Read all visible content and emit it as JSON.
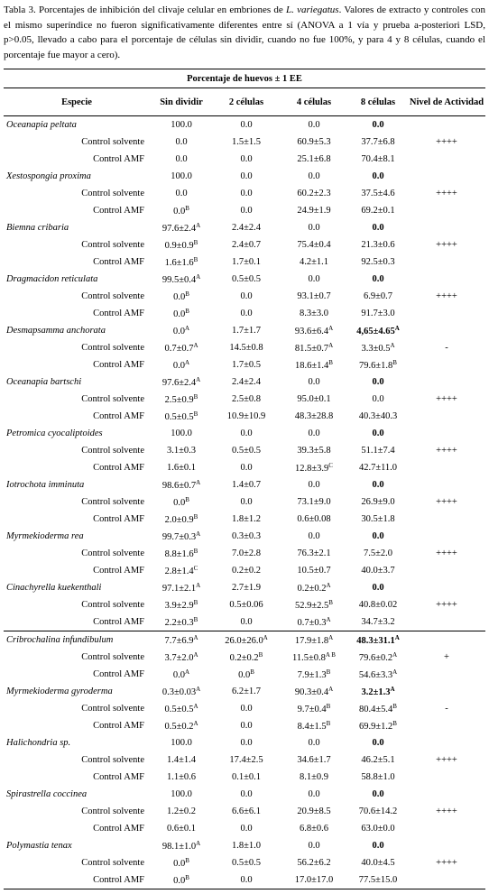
{
  "caption": {
    "before": "Tabla 3. Porcentajes de inhibición del clivaje celular en embriones de ",
    "species": "L. variegatus",
    "after": ". Valores de extracto y controles con el mismo superíndice no fueron significativamente diferentes entre sí (ANOVA a 1 vía y prueba a-posteriori LSD, p>0.05, llevado a cabo para el porcentaje de células sin dividir, cuando no fue 100%, y para 4 y 8 células, cuando el porcentaje fue mayor a cero)."
  },
  "table": {
    "group_header": "Porcentaje de huevos ± 1 EE",
    "columns": [
      "Especie",
      "Sin dividir",
      "2 células",
      "4 células",
      "8 células",
      "Nivel de Actividad"
    ],
    "control_labels": [
      "Control solvente",
      "Control AMF"
    ],
    "groups": [
      [
        {
          "name": "Oceanapia peltata",
          "values": [
            "100.0",
            "0.0",
            "0.0",
            "0.0"
          ],
          "solvente": [
            "0.0",
            "1.5±1.5",
            "60.9±5.3",
            "37.7±6.8"
          ],
          "amf": [
            "0.0",
            "0.0",
            "25.1±6.8",
            "70.4±8.1"
          ],
          "actividad": "++++"
        },
        {
          "name": "Xestospongia proxima",
          "values": [
            "100.0",
            "0.0",
            "0.0",
            "0.0"
          ],
          "solvente": [
            "0.0",
            "0.0",
            "60.2±2.3",
            "37.5±4.6"
          ],
          "amf": [
            {
              "t": "0.0",
              "s": "B"
            },
            "0.0",
            "24.9±1.9",
            "69.2±0.1"
          ],
          "actividad": "++++"
        },
        {
          "name": "Biemna cribaria",
          "values": [
            {
              "t": "97.6±2.4",
              "s": "A"
            },
            "2.4±2.4",
            "0.0",
            "0.0"
          ],
          "solvente": [
            {
              "t": "0.9±0.9",
              "s": "B"
            },
            "2.4±0.7",
            "75.4±0.4",
            "21.3±0.6"
          ],
          "amf": [
            {
              "t": "1.6±1.6",
              "s": "B"
            },
            "1.7±0.1",
            "4.2±1.1",
            "92.5±0.3"
          ],
          "actividad": "++++"
        },
        {
          "name": "Dragmacidon reticulata",
          "values": [
            {
              "t": "99.5±0.4",
              "s": "A"
            },
            "0.5±0.5",
            "0.0",
            "0.0"
          ],
          "solvente": [
            {
              "t": "0.0",
              "s": "B"
            },
            "0.0",
            "93.1±0.7",
            "6.9±0.7"
          ],
          "amf": [
            {
              "t": "0.0",
              "s": "B"
            },
            "0.0",
            "8.3±3.0",
            "91.7±3.0"
          ],
          "actividad": "++++"
        },
        {
          "name": "Desmapsamma anchorata",
          "values": [
            {
              "t": "0.0",
              "s": "A"
            },
            "1.7±1.7",
            {
              "t": "93.6±6.4",
              "s": "A"
            },
            {
              "t": "4,65±4.65",
              "s": "A"
            }
          ],
          "solvente": [
            {
              "t": "0.7±0.7",
              "s": "A"
            },
            "14.5±0.8",
            {
              "t": "81.5±0.7",
              "s": "A"
            },
            {
              "t": "3.3±0.5",
              "s": "A"
            }
          ],
          "amf": [
            {
              "t": "0.0",
              "s": "A"
            },
            "1.7±0.5",
            {
              "t": "18.6±1.4",
              "s": "B"
            },
            {
              "t": "79.6±1.8",
              "s": "B"
            }
          ],
          "actividad": "-"
        },
        {
          "name": "Oceanapia bartschi",
          "values": [
            {
              "t": "97.6±2.4",
              "s": "A"
            },
            "2.4±2.4",
            "0.0",
            "0.0"
          ],
          "solvente": [
            {
              "t": "2.5±0.9",
              "s": "B"
            },
            "2.5±0.8",
            "95.0±0.1",
            "0.0"
          ],
          "amf": [
            {
              "t": "0.5±0.5",
              "s": "B"
            },
            "10.9±10.9",
            "48.3±28.8",
            "40.3±40.3"
          ],
          "actividad": "++++"
        },
        {
          "name": "Petromica cyocaliptoides",
          "values": [
            "100.0",
            "0.0",
            "0.0",
            "0.0"
          ],
          "solvente": [
            "3.1±0.3",
            "0.5±0.5",
            "39.3±5.8",
            "51.1±7.4"
          ],
          "amf": [
            "1.6±0.1",
            "0.0",
            {
              "t": "12.8±3.9",
              "s": "C"
            },
            "42.7±11.0"
          ],
          "actividad": "++++"
        },
        {
          "name": "Iotrochota imminuta",
          "values": [
            {
              "t": "98.6±0.7",
              "s": "A"
            },
            "1.4±0.7",
            "0.0",
            "0.0"
          ],
          "solvente": [
            {
              "t": "0.0",
              "s": "B"
            },
            "0.0",
            "73.1±9.0",
            "26.9±9.0"
          ],
          "amf": [
            {
              "t": "2.0±0.9",
              "s": "B"
            },
            "1.8±1.2",
            "0.6±0.08",
            "30.5±1.8"
          ],
          "actividad": "++++"
        },
        {
          "name": "Myrmekioderma rea",
          "values": [
            {
              "t": "99.7±0.3",
              "s": "A"
            },
            "0.3±0.3",
            "0.0",
            "0.0"
          ],
          "solvente": [
            {
              "t": "8.8±1.6",
              "s": "B"
            },
            "7.0±2.8",
            "76.3±2.1",
            "7.5±2.0"
          ],
          "amf": [
            {
              "t": "2.8±1.4",
              "s": "C"
            },
            "0.2±0.2",
            "10.5±0.7",
            "40.0±3.7"
          ],
          "actividad": "++++"
        },
        {
          "name": "Cinachyrella kuekenthali",
          "values": [
            {
              "t": "97.1±2.1",
              "s": "A"
            },
            "2.7±1.9",
            {
              "t": "0.2±0.2",
              "s": "A"
            },
            "0.0"
          ],
          "solvente": [
            {
              "t": "3.9±2.9",
              "s": "B"
            },
            "0.5±0.06",
            {
              "t": "52.9±2.5",
              "s": "B"
            },
            "40.8±0.02"
          ],
          "amf": [
            {
              "t": "2.2±0.3",
              "s": "B"
            },
            "0.0",
            {
              "t": "0.7±0.3",
              "s": "A"
            },
            "34.7±3.2"
          ],
          "actividad": "++++"
        }
      ],
      [
        {
          "name": "Cribrochalina infundibulum",
          "values": [
            {
              "t": "7.7±6.9",
              "s": "A"
            },
            {
              "t": "26.0±26.0",
              "s": "A"
            },
            {
              "t": "17.9±1.8",
              "s": "A"
            },
            {
              "t": "48.3±31.1",
              "s": "A"
            }
          ],
          "solvente": [
            {
              "t": "3.7±2.0",
              "s": "A"
            },
            {
              "t": "0.2±0.2",
              "s": "B"
            },
            {
              "t": "11.5±0.8",
              "s": "A B"
            },
            {
              "t": "79.6±0.2",
              "s": "A"
            }
          ],
          "amf": [
            {
              "t": "0.0",
              "s": "A"
            },
            {
              "t": "0.0",
              "s": "B"
            },
            {
              "t": "7.9±1.3",
              "s": "B"
            },
            {
              "t": "54.6±3.3",
              "s": "A"
            }
          ],
          "actividad": "+"
        },
        {
          "name": "Myrmekioderma gyroderma",
          "values": [
            {
              "t": "0.3±0.03",
              "s": "A"
            },
            "6.2±1.7",
            {
              "t": "90.3±0.4",
              "s": "A"
            },
            {
              "t": "3.2±1.3",
              "s": "A"
            }
          ],
          "solvente": [
            {
              "t": "0.5±0.5",
              "s": "A"
            },
            "0.0",
            {
              "t": "9.7±0.4",
              "s": "B"
            },
            {
              "t": "80.4±5.4",
              "s": "B"
            }
          ],
          "amf": [
            {
              "t": "0.5±0.2",
              "s": "A"
            },
            "0.0",
            {
              "t": "8.4±1.5",
              "s": "B"
            },
            {
              "t": "69.9±1.2",
              "s": "B"
            }
          ],
          "actividad": "-"
        },
        {
          "name": "Halichondria sp.",
          "values": [
            "100.0",
            "0.0",
            "0.0",
            "0.0"
          ],
          "solvente": [
            "1.4±1.4",
            "17.4±2.5",
            "34.6±1.7",
            "46.2±5.1"
          ],
          "amf": [
            "1.1±0.6",
            "0.1±0.1",
            "8.1±0.9",
            "58.8±1.0"
          ],
          "actividad": "++++"
        },
        {
          "name": "Spirastrella coccinea",
          "values": [
            "100.0",
            "0.0",
            "0.0",
            "0.0"
          ],
          "solvente": [
            "1.2±0.2",
            "6.6±6.1",
            "20.9±8.5",
            "70.6±14.2"
          ],
          "amf": [
            "0.6±0.1",
            "0.0",
            "6.8±0.6",
            "63.0±0.0"
          ],
          "actividad": "++++"
        },
        {
          "name": "Polymastia tenax",
          "values": [
            {
              "t": "98.1±1.0",
              "s": "A"
            },
            "1.8±1.0",
            "0.0",
            "0.0"
          ],
          "solvente": [
            {
              "t": "0.0",
              "s": "B"
            },
            "0.5±0.5",
            "56.2±6.2",
            "40.0±4.5"
          ],
          "amf": [
            {
              "t": "0.0",
              "s": "B"
            },
            "0.0",
            "17.0±17.0",
            "77.5±15.0"
          ],
          "actividad": "++++"
        }
      ]
    ]
  }
}
